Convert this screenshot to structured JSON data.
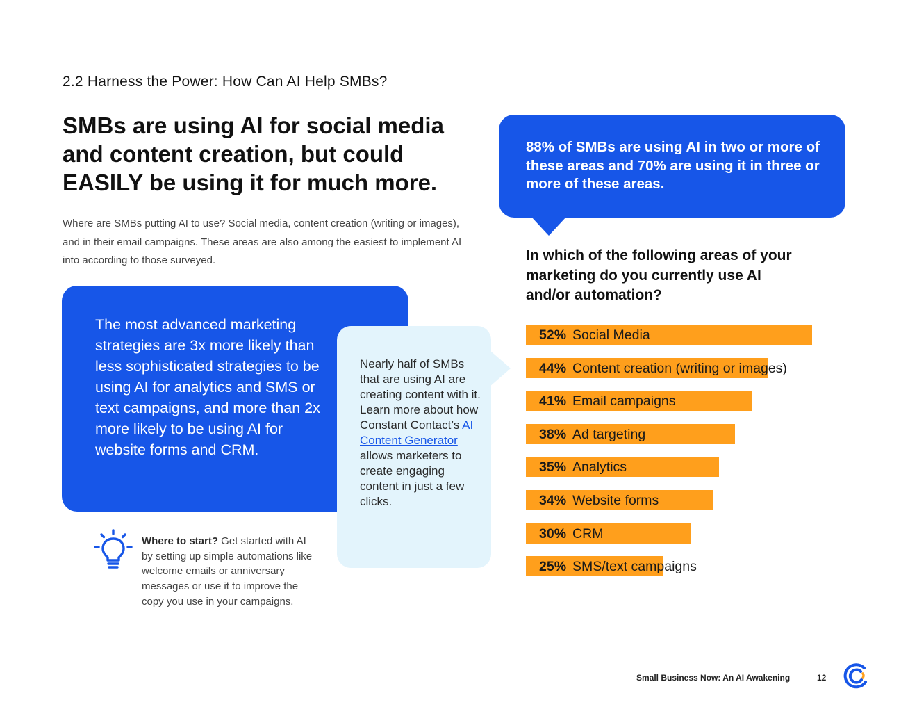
{
  "section": {
    "heading": "2.2 Harness the Power: How Can AI Help SMBs?"
  },
  "headline": "SMBs are using AI for social media and content creation, but could EASILY be using it for much more.",
  "intro": "Where are SMBs putting AI to use? Social media, content creation (writing or images), and in their email campaigns. These areas are also among the easiest to implement AI into according to those surveyed.",
  "callouts": {
    "advanced": "The most advanced marketing strategies are 3x more likely than less sophisticated strategies to be using AI for analytics and SMS or text campaigns, and more than 2x more likely to be using AI for website forms and CRM.",
    "content_before": "Nearly half of SMBs that are using AI are creating content with it. Learn more about how Constant Contact’s ",
    "content_link": "AI Content Generator",
    "content_after": " allows marketers to create engaging content in just a few clicks.",
    "stat": "88% of SMBs are using AI in two or more of these areas and 70% are using it in three or more of these areas."
  },
  "tip": {
    "lead": "Where to start?",
    "body": " Get started with AI by setting up simple automations like welcome emails or anniversary messages or use it to improve the copy you use in your campaigns.",
    "icon": "lightbulb-icon"
  },
  "chart_data": {
    "type": "bar",
    "orientation": "horizontal",
    "title": "In which of the following areas of your marketing do you currently use AI and/or automation?",
    "categories": [
      "Social Media",
      "Content creation (writing or images)",
      "Email campaigns",
      "Ad targeting",
      "Analytics",
      "Website forms",
      "CRM",
      "SMS/text campaigns"
    ],
    "values": [
      52,
      44,
      41,
      38,
      35,
      34,
      30,
      25
    ],
    "labels": [
      "52%",
      "44%",
      "41%",
      "38%",
      "35%",
      "34%",
      "30%",
      "25%"
    ],
    "unit": "%",
    "bar_color": "#ff9f1c",
    "grid": false,
    "legend": "none"
  },
  "footer": {
    "title": "Small Business Now: An AI Awakening",
    "page": "12",
    "logo": "constant-contact-logo-icon"
  },
  "colors": {
    "blue": "#1756e8",
    "light_blue": "#e3f4fc",
    "orange": "#ff9f1c"
  }
}
